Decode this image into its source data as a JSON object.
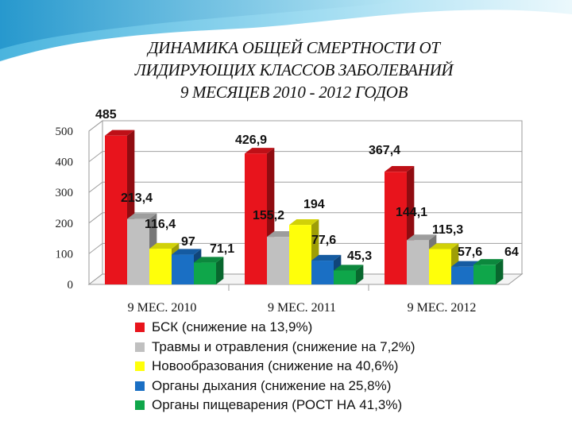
{
  "title_lines": [
    "ДИНАМИКА ОБЩЕЙ СМЕРТНОСТИ ОТ",
    "ЛИДИРУЮЩИХ КЛАССОВ ЗАБОЛЕВАНИЙ",
    "9 МЕСЯЦЕВ 2010 - 2012 ГОДОВ"
  ],
  "chart_data": {
    "type": "bar",
    "style": "3d-clustered",
    "title": "ДИНАМИКА ОБЩЕЙ СМЕРТНОСТИ ОТ ЛИДИРУЮЩИХ КЛАССОВ ЗАБОЛЕВАНИЙ 9 МЕСЯЦЕВ 2010 - 2012 ГОДОВ",
    "categories": [
      "9 МЕС. 2010",
      "9 МЕС. 2011",
      "9 МЕС. 2012"
    ],
    "ylim": [
      0,
      500
    ],
    "yticks": [
      0,
      100,
      200,
      300,
      400,
      500
    ],
    "grid": true,
    "legend_position": "bottom",
    "series": [
      {
        "name": "БСК (снижение на 13,9%)",
        "color": "#e8141c",
        "values": [
          485,
          426.9,
          367.4
        ],
        "labels": [
          "485",
          "426,9",
          "367,4"
        ]
      },
      {
        "name": "Травмы и отравления (снижение на 7,2%)",
        "color": "#c0c0c0",
        "values": [
          213.4,
          155.2,
          144.1
        ],
        "labels": [
          "213,4",
          "155,2",
          "144,1"
        ]
      },
      {
        "name": "Новообразования (снижение на 40,6%)",
        "color": "#ffff0a",
        "values": [
          116.4,
          194,
          115.3
        ],
        "labels": [
          "116,4",
          "194",
          "115,3"
        ]
      },
      {
        "name": "Органы дыхания (снижение на 25,8%)",
        "color": "#1a6fc4",
        "values": [
          97,
          77.6,
          57.6
        ],
        "labels": [
          "97",
          "77,6",
          "57,6"
        ]
      },
      {
        "name": "Органы пищеварения (РОСТ НА 41,3%)",
        "color": "#0fa64a",
        "values": [
          71.1,
          45.3,
          64
        ],
        "labels": [
          "71,1",
          "45,3",
          "64"
        ]
      }
    ]
  }
}
